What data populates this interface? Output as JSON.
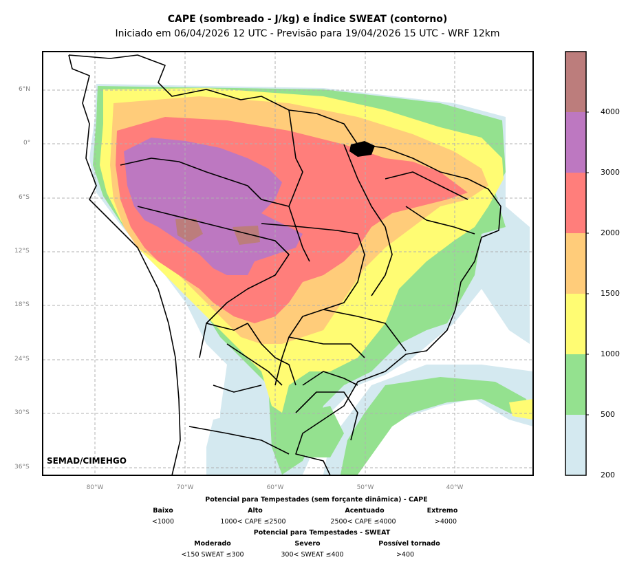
{
  "title": {
    "line1": "CAPE (sombreado - J/kg) e Índice SWEAT (contorno)",
    "line2": "Iniciado em 06/04/2026 12 UTC - Previsão para 19/04/2026 15 UTC - WRF 12km"
  },
  "map": {
    "latitude_ticks": [
      "6°N",
      "0°",
      "6°S",
      "12°S",
      "18°S",
      "24°S",
      "30°S",
      "36°S"
    ],
    "longitude_ticks": [
      "80°W",
      "70°W",
      "60°W",
      "50°W",
      "40°W"
    ],
    "credit": "SEMAD/CIMEHGO"
  },
  "colorbar": {
    "boundaries": [
      "200",
      "500",
      "1000",
      "1500",
      "2000",
      "3000",
      "4000"
    ],
    "colors": [
      "#d4e9f0",
      "#94e18f",
      "#fffc73",
      "#ffcc7a",
      "#ff7e7b",
      "#bd78c1",
      "#bc7d7c"
    ]
  },
  "legend": {
    "cape_title": "Potencial para Tempestades (sem forçante dinâmica) - CAPE",
    "cape_categories": [
      {
        "name": "Baixo",
        "range": "<1000"
      },
      {
        "name": "Alto",
        "range": "1000< CAPE ≤2500"
      },
      {
        "name": "Acentuado",
        "range": "2500< CAPE ≤4000"
      },
      {
        "name": "Extremo",
        "range": ">4000"
      }
    ],
    "sweat_title": "Potencial para Tempestades - SWEAT",
    "sweat_categories": [
      {
        "name": "Moderado",
        "range": "<150 SWEAT ≤300"
      },
      {
        "name": "Severo",
        "range": "300< SWEAT ≤400"
      },
      {
        "name": "Possível tornado",
        "range": ">400"
      }
    ]
  }
}
